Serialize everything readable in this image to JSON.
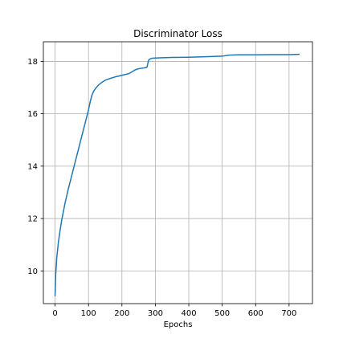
{
  "chart_data": {
    "type": "line",
    "title": "Discriminator Loss",
    "xlabel": "Epochs",
    "ylabel": "",
    "xlim": [
      -35,
      770
    ],
    "ylim": [
      8.75,
      18.75
    ],
    "xticks": [
      0,
      100,
      200,
      300,
      400,
      500,
      600,
      700
    ],
    "yticks": [
      10,
      12,
      14,
      16,
      18
    ],
    "grid": true,
    "series": [
      {
        "color": "#1f77b4",
        "x": [
          0,
          2,
          5,
          10,
          15,
          20,
          30,
          40,
          50,
          60,
          70,
          80,
          90,
          100,
          105,
          110,
          115,
          120,
          130,
          140,
          150,
          160,
          170,
          180,
          190,
          200,
          210,
          220,
          230,
          240,
          250,
          260,
          270,
          275,
          278,
          280,
          285,
          290,
          300,
          320,
          350,
          400,
          450,
          500,
          520,
          550,
          600,
          650,
          700,
          730
        ],
        "y": [
          9.05,
          9.9,
          10.5,
          11.1,
          11.55,
          11.95,
          12.6,
          13.15,
          13.65,
          14.15,
          14.65,
          15.15,
          15.65,
          16.15,
          16.45,
          16.7,
          16.85,
          16.95,
          17.1,
          17.2,
          17.28,
          17.33,
          17.37,
          17.41,
          17.44,
          17.47,
          17.5,
          17.53,
          17.6,
          17.68,
          17.72,
          17.74,
          17.76,
          17.78,
          17.95,
          18.05,
          18.1,
          18.12,
          18.13,
          18.14,
          18.15,
          18.16,
          18.18,
          18.2,
          18.24,
          18.25,
          18.25,
          18.26,
          18.26,
          18.27
        ]
      }
    ]
  }
}
